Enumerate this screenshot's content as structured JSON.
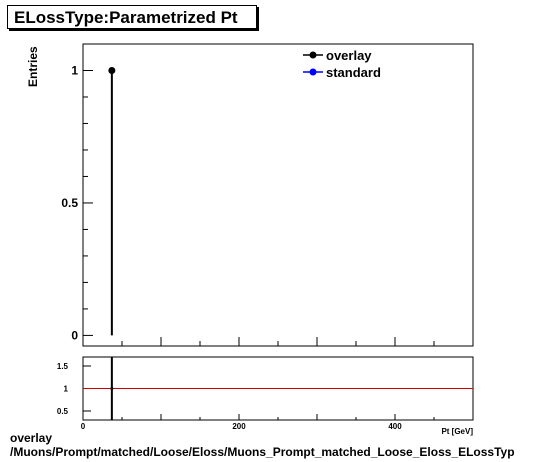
{
  "title": "ELossType:Parametrized Pt",
  "footer": {
    "line1": "overlay",
    "line2": "/Muons/Prompt/matched/Loose/Eloss/Muons_Prompt_matched_Loose_Eloss_ELossTyp"
  },
  "colors": {
    "overlay": "#000000",
    "standard": "#0000ff",
    "ratio_line": "#cc0000"
  },
  "chart_data": [
    {
      "type": "scatter",
      "ylabel": "Entries",
      "xlim": [
        0,
        500
      ],
      "ylim": [
        -0.04,
        1.1
      ],
      "y_ticks": [
        0,
        0.5,
        1
      ],
      "y_tick_labels": [
        "0",
        "0.5",
        "1"
      ],
      "legend": {
        "placement": "top-right",
        "entries": [
          "overlay",
          "standard"
        ]
      },
      "series": [
        {
          "name": "overlay",
          "points": [
            {
              "x": 37,
              "y": 1,
              "yerr": 1
            }
          ]
        },
        {
          "name": "standard",
          "points": []
        }
      ]
    },
    {
      "type": "line",
      "xlabel": "Pt [GeV]",
      "xlim": [
        0,
        500
      ],
      "ylim": [
        0.3,
        1.7
      ],
      "x_ticks": [
        0,
        200,
        400
      ],
      "x_tick_labels": [
        "0",
        "200",
        "400"
      ],
      "y_ticks": [
        0.5,
        1,
        1.5
      ],
      "y_tick_labels": [
        "0.5",
        "1",
        "1.5"
      ],
      "reference_y": 1,
      "series": [
        {
          "points": [
            {
              "x": 37,
              "y": 1
            }
          ]
        }
      ]
    }
  ]
}
